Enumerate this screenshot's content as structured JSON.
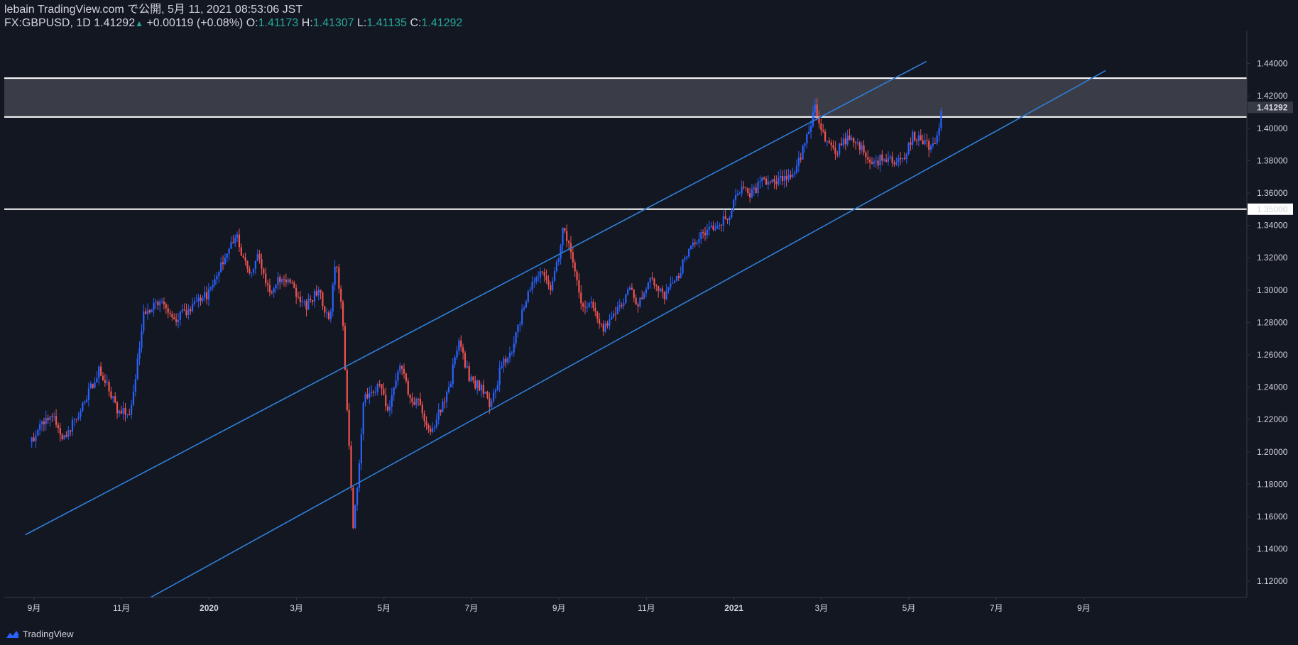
{
  "header": {
    "line1": "lebain TradingView.com で公開, 5月 11, 2021 08:53:06 JST",
    "symbol": "FX:GBPUSD, 1D",
    "last": "1.41292",
    "arrow": "▲",
    "change": "+0.00119 (+0.08%)",
    "o_label": "O:",
    "o_value": "1.41173",
    "h_label": "H:",
    "h_value": "1.41307",
    "l_label": "L:",
    "l_value": "1.41135",
    "c_label": "C:",
    "c_value": "1.41292"
  },
  "footer": {
    "brand": "TradingView"
  },
  "colors": {
    "background": "#131722",
    "up": "#2962ff",
    "down": "#ef5350",
    "trendline": "#2f7ed8",
    "zone": "#3c3f4a",
    "level": "#ffffff",
    "grid": "#2a2e39",
    "text": "#d1d4dc"
  },
  "chart_data": {
    "type": "candlestick",
    "symbol": "FX:GBPUSD",
    "interval": "1D",
    "ylim": [
      1.11,
      1.46
    ],
    "y_ticks": [
      "1.12000",
      "1.14000",
      "1.16000",
      "1.18000",
      "1.20000",
      "1.22000",
      "1.24000",
      "1.26000",
      "1.28000",
      "1.30000",
      "1.32000",
      "1.34000",
      "1.36000",
      "1.38000",
      "1.40000",
      "1.42000",
      "1.44000"
    ],
    "x_ticks": [
      {
        "label": "9月",
        "month": 0
      },
      {
        "label": "11月",
        "month": 2
      },
      {
        "label": "2020",
        "month": 4,
        "bold": true
      },
      {
        "label": "3月",
        "month": 6
      },
      {
        "label": "5月",
        "month": 8
      },
      {
        "label": "7月",
        "month": 10
      },
      {
        "label": "9月",
        "month": 12
      },
      {
        "label": "11月",
        "month": 14
      },
      {
        "label": "2021",
        "month": 16,
        "bold": true
      },
      {
        "label": "3月",
        "month": 18
      },
      {
        "label": "5月",
        "month": 20
      },
      {
        "label": "7月",
        "month": 22
      },
      {
        "label": "9月",
        "month": 24
      }
    ],
    "price_path": [
      [
        -0.1,
        1.206
      ],
      [
        0.4,
        1.225
      ],
      [
        0.7,
        1.207
      ],
      [
        1.2,
        1.235
      ],
      [
        1.5,
        1.251
      ],
      [
        1.9,
        1.226
      ],
      [
        2.2,
        1.222
      ],
      [
        2.5,
        1.285
      ],
      [
        2.9,
        1.294
      ],
      [
        3.2,
        1.281
      ],
      [
        3.6,
        1.29
      ],
      [
        4.0,
        1.298
      ],
      [
        4.6,
        1.335
      ],
      [
        4.9,
        1.31
      ],
      [
        5.1,
        1.32
      ],
      [
        5.4,
        1.3
      ],
      [
        5.7,
        1.31
      ],
      [
        6.2,
        1.29
      ],
      [
        6.5,
        1.3
      ],
      [
        6.75,
        1.281
      ],
      [
        6.9,
        1.318
      ],
      [
        7.05,
        1.285
      ],
      [
        7.3,
        1.15
      ],
      [
        7.55,
        1.235
      ],
      [
        7.9,
        1.24
      ],
      [
        8.1,
        1.224
      ],
      [
        8.35,
        1.256
      ],
      [
        8.6,
        1.232
      ],
      [
        8.8,
        1.23
      ],
      [
        9.05,
        1.21
      ],
      [
        9.5,
        1.24
      ],
      [
        9.7,
        1.27
      ],
      [
        9.95,
        1.245
      ],
      [
        10.2,
        1.24
      ],
      [
        10.45,
        1.228
      ],
      [
        10.7,
        1.255
      ],
      [
        10.9,
        1.26
      ],
      [
        11.3,
        1.3
      ],
      [
        11.6,
        1.31
      ],
      [
        11.8,
        1.302
      ],
      [
        12.0,
        1.32
      ],
      [
        12.1,
        1.338
      ],
      [
        12.3,
        1.32
      ],
      [
        12.5,
        1.29
      ],
      [
        12.7,
        1.292
      ],
      [
        13.0,
        1.275
      ],
      [
        13.3,
        1.285
      ],
      [
        13.6,
        1.3
      ],
      [
        13.8,
        1.292
      ],
      [
        14.1,
        1.308
      ],
      [
        14.4,
        1.295
      ],
      [
        14.7,
        1.308
      ],
      [
        15.0,
        1.326
      ],
      [
        15.3,
        1.335
      ],
      [
        15.6,
        1.34
      ],
      [
        15.9,
        1.345
      ],
      [
        16.1,
        1.362
      ],
      [
        16.4,
        1.36
      ],
      [
        16.7,
        1.368
      ],
      [
        17.0,
        1.368
      ],
      [
        17.3,
        1.37
      ],
      [
        17.6,
        1.388
      ],
      [
        17.85,
        1.412
      ],
      [
        18.1,
        1.394
      ],
      [
        18.3,
        1.384
      ],
      [
        18.6,
        1.394
      ],
      [
        18.9,
        1.388
      ],
      [
        19.2,
        1.378
      ],
      [
        19.4,
        1.382
      ],
      [
        19.7,
        1.38
      ],
      [
        19.9,
        1.384
      ],
      [
        20.1,
        1.396
      ],
      [
        20.3,
        1.392
      ],
      [
        20.5,
        1.388
      ],
      [
        20.65,
        1.396
      ],
      [
        20.75,
        1.4129
      ]
    ],
    "levels": [
      1.431,
      1.407,
      1.35
    ],
    "zone": [
      1.407,
      1.431
    ],
    "channel_lines": [
      {
        "name": "upper",
        "p1": [
          6.4,
          1.2425
        ],
        "p2": [
          18.3,
          1.4115
        ],
        "x_from": -0.2,
        "x_to": 20.4
      },
      {
        "name": "lower",
        "p1": [
          9.2,
          1.2075
        ],
        "p2": [
          20.7,
          1.379
        ],
        "x_from": 2.2,
        "x_to": 24.5
      }
    ],
    "last_price": "1.41292",
    "level_label": "1.35000"
  }
}
